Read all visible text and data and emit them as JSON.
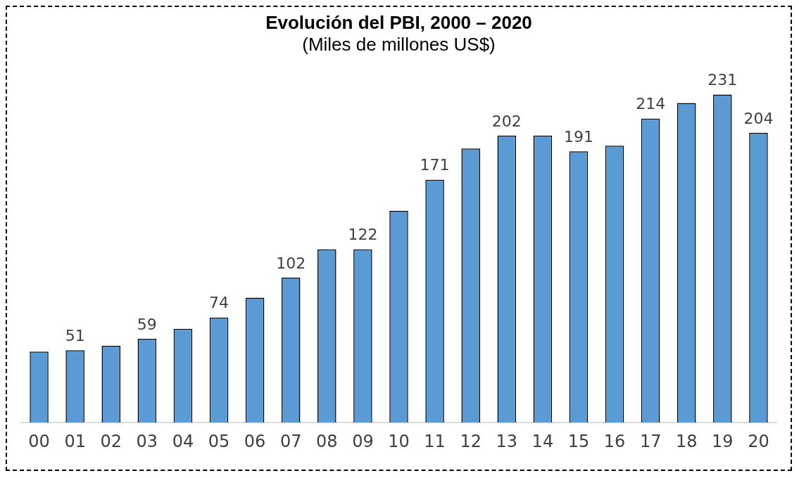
{
  "chart_data": {
    "type": "bar",
    "title": "Evolución del PBI, 2000 – 2020",
    "subtitle": "(Miles de millones US$)",
    "categories": [
      "00",
      "01",
      "02",
      "03",
      "04",
      "05",
      "06",
      "07",
      "08",
      "09",
      "10",
      "11",
      "12",
      "13",
      "14",
      "15",
      "16",
      "17",
      "18",
      "19",
      "20"
    ],
    "values": [
      50,
      51,
      54,
      59,
      66,
      74,
      88,
      102,
      122,
      122,
      149,
      171,
      193,
      202,
      202,
      191,
      195,
      214,
      225,
      231,
      204
    ],
    "value_labels": [
      null,
      "51",
      null,
      "59",
      null,
      "74",
      null,
      "102",
      null,
      "122",
      null,
      "171",
      null,
      "202",
      null,
      "191",
      null,
      "214",
      null,
      "231",
      "204"
    ],
    "color": "#5b9bd5",
    "grid": false,
    "legend": false
  }
}
